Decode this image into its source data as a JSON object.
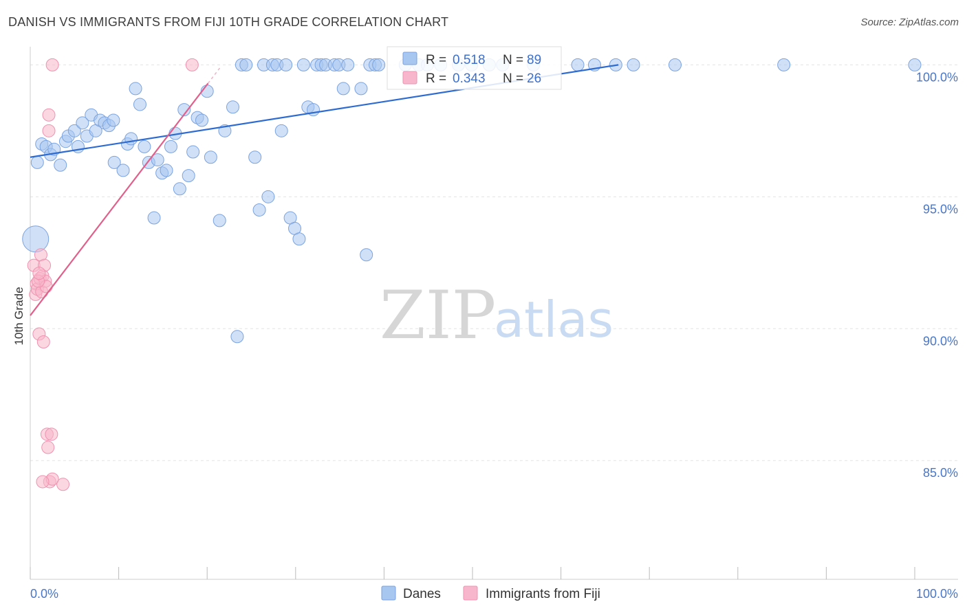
{
  "header": {
    "title": "DANISH VS IMMIGRANTS FROM FIJI 10TH GRADE CORRELATION CHART",
    "source": "Source: ZipAtlas.com"
  },
  "watermark": {
    "zip": "ZIP",
    "atlas": "atlas"
  },
  "legend_box": {
    "rows": [
      {
        "r_label": "R =",
        "r_value": "0.518",
        "n_label": "N =",
        "n_value": "89",
        "color": "#a7c6f0"
      },
      {
        "r_label": "R =",
        "r_value": "0.343",
        "n_label": "N =",
        "n_value": "26",
        "color": "#f7b6cb"
      }
    ]
  },
  "bottom_legend": {
    "items": [
      {
        "label": "Danes",
        "color": "#a7c6f0"
      },
      {
        "label": "Immigrants from Fiji",
        "color": "#f7b6cb"
      }
    ]
  },
  "chart_data": {
    "type": "scatter",
    "title": "DANISH VS IMMIGRANTS FROM FIJI 10TH GRADE CORRELATION CHART",
    "xlabel": "",
    "ylabel": "10th Grade",
    "xlim": [
      0,
      100
    ],
    "ylim": [
      80.5,
      100.4
    ],
    "x_tick_labels": [
      "0.0%",
      "100.0%"
    ],
    "y_ticks": [
      85,
      90,
      95,
      100
    ],
    "y_tick_labels": [
      "85.0%",
      "90.0%",
      "95.0%",
      "100.0%"
    ],
    "grid": true,
    "series": [
      {
        "name": "Danes",
        "color": "#a7c6f0",
        "stroke": "#7aa3e0",
        "trend": {
          "x0": 0,
          "y0": 96.5,
          "x1": 66.5,
          "y1": 100.0,
          "color": "#2e6bd0"
        },
        "points": [
          [
            0.6,
            93.4
          ],
          [
            0.8,
            96.3
          ],
          [
            1.3,
            97.0
          ],
          [
            1.8,
            96.9
          ],
          [
            2.3,
            96.6
          ],
          [
            2.7,
            96.8
          ],
          [
            3.4,
            96.2
          ],
          [
            4.0,
            97.1
          ],
          [
            4.3,
            97.3
          ],
          [
            5.0,
            97.5
          ],
          [
            5.4,
            96.9
          ],
          [
            5.9,
            97.8
          ],
          [
            6.4,
            97.3
          ],
          [
            6.9,
            98.1
          ],
          [
            7.4,
            97.5
          ],
          [
            7.9,
            97.9
          ],
          [
            8.4,
            97.8
          ],
          [
            8.9,
            97.7
          ],
          [
            9.4,
            97.9
          ],
          [
            9.5,
            96.3
          ],
          [
            10.5,
            96.0
          ],
          [
            11.0,
            97.0
          ],
          [
            11.4,
            97.2
          ],
          [
            11.9,
            99.1
          ],
          [
            12.4,
            98.5
          ],
          [
            12.9,
            96.9
          ],
          [
            13.4,
            96.3
          ],
          [
            14.0,
            94.2
          ],
          [
            14.4,
            96.4
          ],
          [
            14.9,
            95.9
          ],
          [
            15.4,
            96.0
          ],
          [
            15.9,
            96.9
          ],
          [
            16.4,
            97.4
          ],
          [
            16.9,
            95.3
          ],
          [
            17.4,
            98.3
          ],
          [
            17.9,
            95.8
          ],
          [
            18.4,
            96.7
          ],
          [
            18.9,
            98.0
          ],
          [
            19.4,
            97.9
          ],
          [
            20.0,
            99.0
          ],
          [
            20.4,
            96.5
          ],
          [
            21.4,
            94.1
          ],
          [
            22.0,
            97.5
          ],
          [
            22.9,
            98.4
          ],
          [
            23.4,
            89.7
          ],
          [
            23.9,
            100.0
          ],
          [
            24.4,
            100.0
          ],
          [
            25.4,
            96.5
          ],
          [
            25.9,
            94.5
          ],
          [
            26.4,
            100.0
          ],
          [
            26.9,
            95.0
          ],
          [
            27.4,
            100.0
          ],
          [
            27.9,
            100.0
          ],
          [
            28.4,
            97.5
          ],
          [
            28.9,
            100.0
          ],
          [
            29.4,
            94.2
          ],
          [
            29.9,
            93.8
          ],
          [
            30.4,
            93.4
          ],
          [
            30.9,
            100.0
          ],
          [
            31.4,
            98.4
          ],
          [
            32.0,
            98.3
          ],
          [
            32.4,
            100.0
          ],
          [
            32.9,
            100.0
          ],
          [
            33.4,
            100.0
          ],
          [
            34.4,
            100.0
          ],
          [
            34.9,
            100.0
          ],
          [
            35.4,
            99.1
          ],
          [
            35.9,
            100.0
          ],
          [
            37.4,
            99.1
          ],
          [
            38.0,
            92.8
          ],
          [
            38.4,
            100.0
          ],
          [
            39.0,
            100.0
          ],
          [
            39.4,
            100.0
          ],
          [
            42.4,
            100.0
          ],
          [
            43.9,
            100.0
          ],
          [
            44.9,
            100.0
          ],
          [
            46.4,
            100.0
          ],
          [
            48.4,
            100.0
          ],
          [
            49.9,
            100.0
          ],
          [
            51.9,
            100.0
          ],
          [
            53.4,
            100.0
          ],
          [
            56.9,
            100.0
          ],
          [
            61.9,
            100.0
          ],
          [
            63.8,
            100.0
          ],
          [
            66.2,
            100.0
          ],
          [
            68.2,
            100.0
          ],
          [
            72.9,
            100.0
          ],
          [
            85.2,
            100.0
          ],
          [
            100.0,
            100.0
          ]
        ]
      },
      {
        "name": "Immigrants from Fiji",
        "color": "#f7b6cb",
        "stroke": "#ef92b0",
        "trend": {
          "x0": 0,
          "y0": 90.5,
          "x1": 20.1,
          "y1": 99.3,
          "color": "#e0608c"
        },
        "points": [
          [
            0.4,
            92.4
          ],
          [
            0.6,
            91.3
          ],
          [
            0.7,
            91.7
          ],
          [
            0.8,
            91.5
          ],
          [
            1.0,
            89.8
          ],
          [
            1.1,
            91.9
          ],
          [
            1.2,
            92.8
          ],
          [
            1.3,
            91.4
          ],
          [
            1.4,
            92.0
          ],
          [
            1.5,
            89.5
          ],
          [
            1.6,
            92.4
          ],
          [
            1.7,
            91.8
          ],
          [
            1.8,
            91.6
          ],
          [
            1.9,
            86.0
          ],
          [
            2.0,
            85.5
          ],
          [
            2.1,
            97.5
          ],
          [
            2.1,
            98.1
          ],
          [
            2.2,
            84.2
          ],
          [
            2.4,
            86.0
          ],
          [
            2.5,
            84.3
          ],
          [
            1.4,
            84.2
          ],
          [
            3.7,
            84.1
          ],
          [
            2.5,
            100.0
          ],
          [
            18.3,
            100.0
          ],
          [
            0.9,
            91.8
          ],
          [
            1.0,
            92.1
          ]
        ]
      }
    ]
  }
}
